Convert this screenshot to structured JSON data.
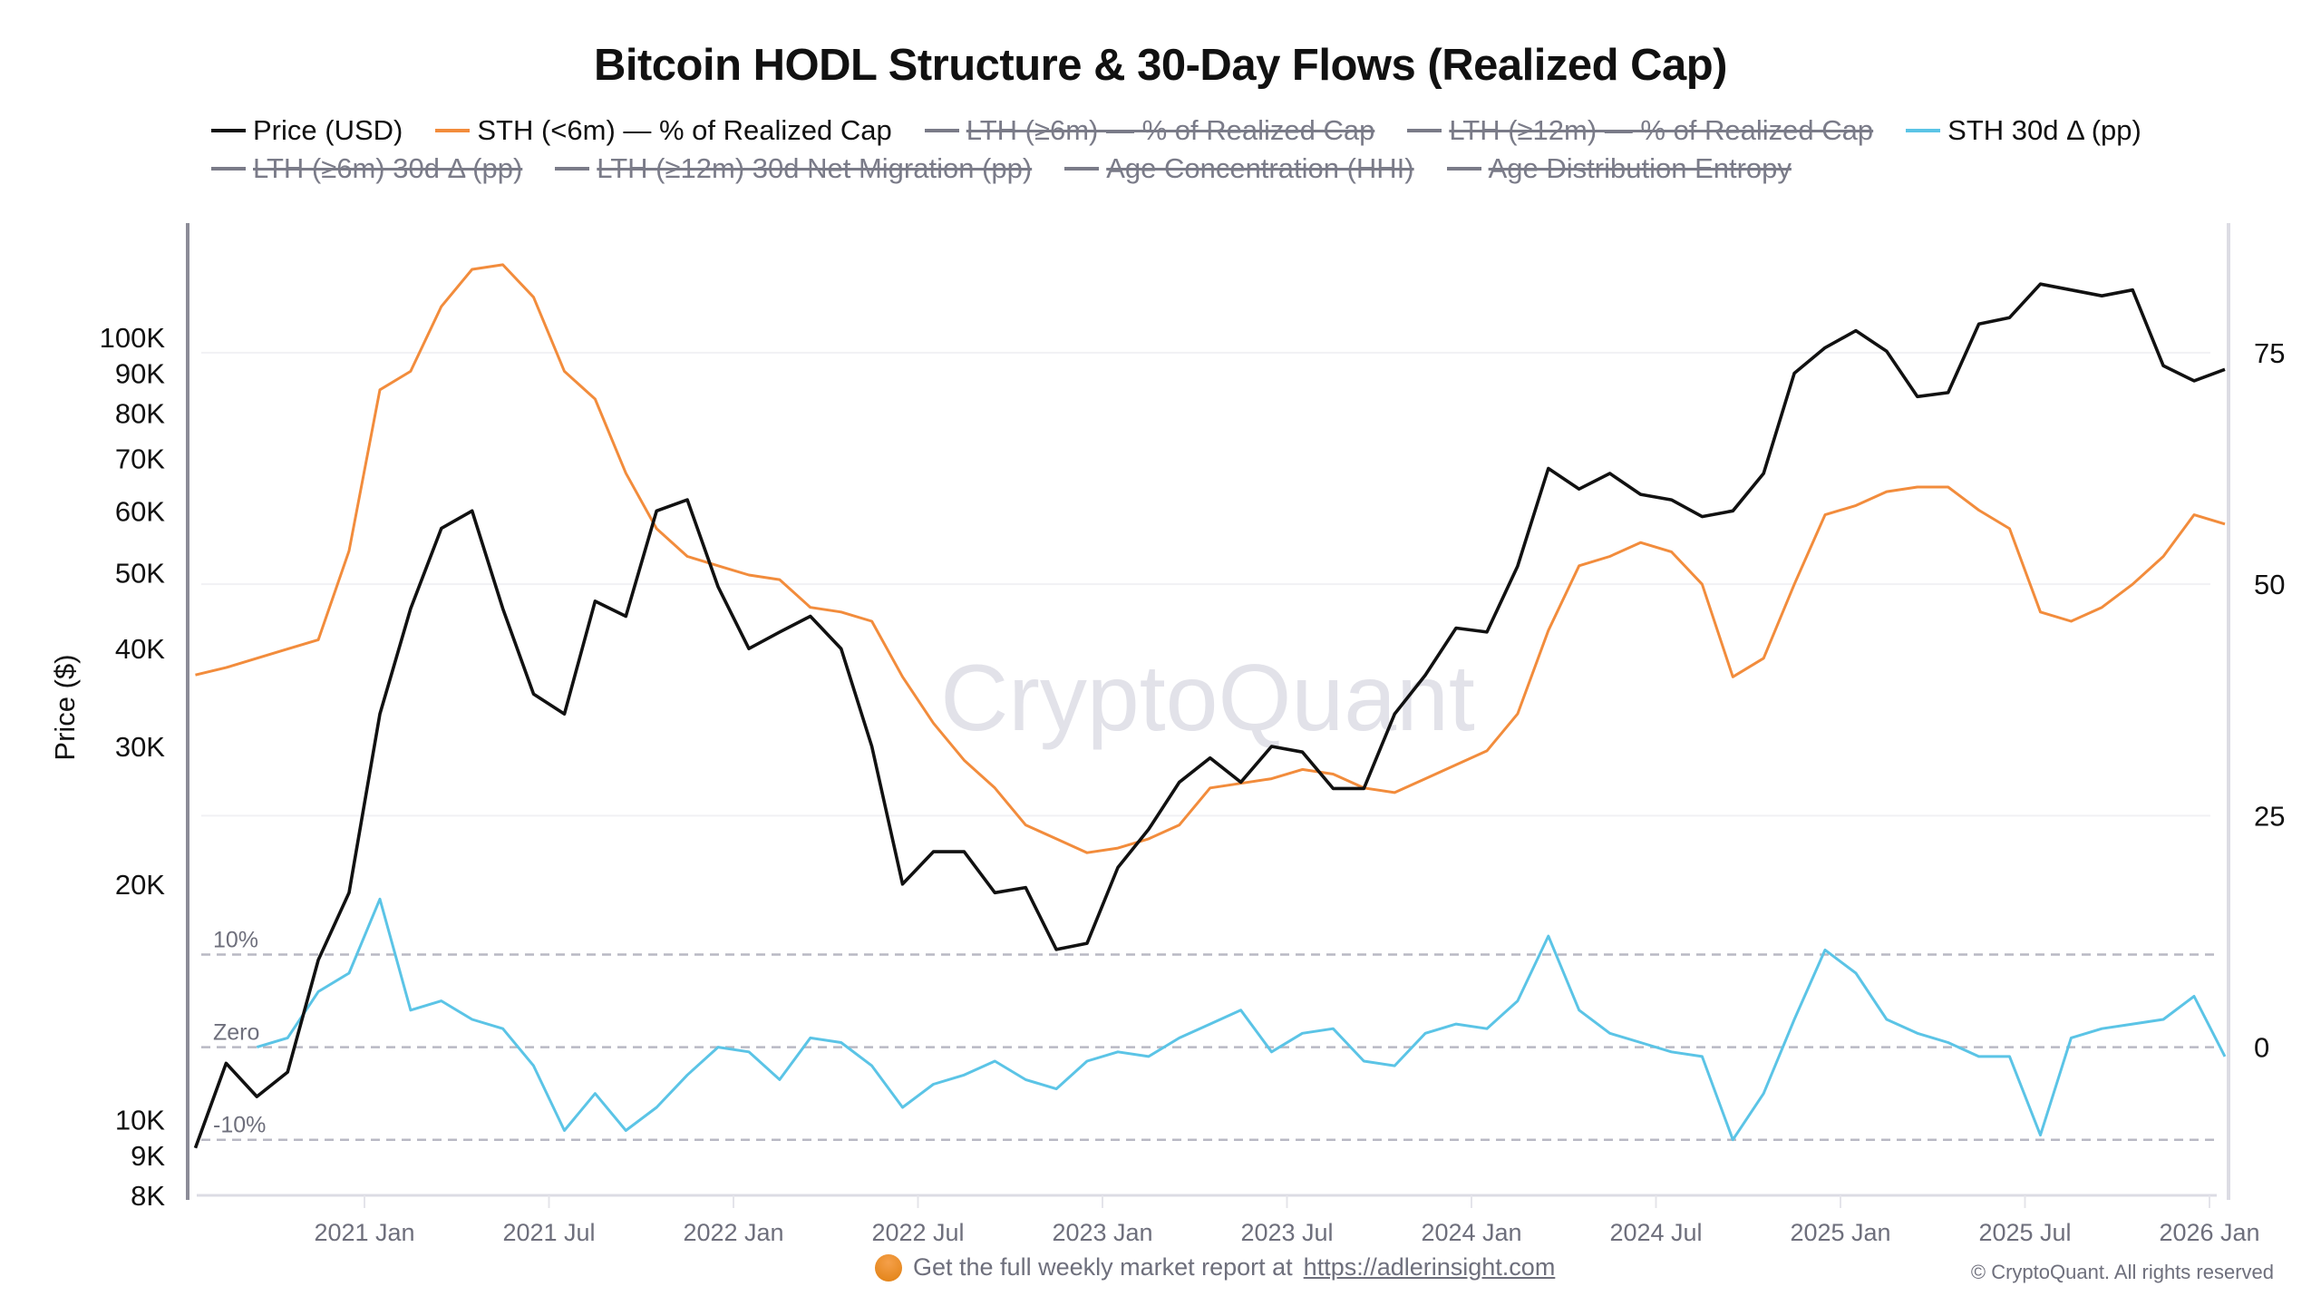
{
  "title": "Bitcoin HODL Structure & 30-Day Flows (Realized Cap)",
  "legend": {
    "row1": [
      {
        "label": "Price (USD)",
        "color": "#111111",
        "hidden": false
      },
      {
        "label": "STH (<6m) — % of Realized Cap",
        "color": "#f28c3c",
        "hidden": false
      },
      {
        "label": "LTH (≥6m) — % of Realized Cap",
        "color": "#7a7b88",
        "hidden": true
      },
      {
        "label": "LTH (≥12m) — % of Realized Cap",
        "color": "#7a7b88",
        "hidden": true
      },
      {
        "label": "STH 30d Δ (pp)",
        "color": "#5bc4e6",
        "hidden": false
      }
    ],
    "row2": [
      {
        "label": "LTH (≥6m) 30d Δ (pp)",
        "color": "#7a7b88",
        "hidden": true
      },
      {
        "label": "LTH (≥12m) 30d Net Migration (pp)",
        "color": "#7a7b88",
        "hidden": true
      },
      {
        "label": "Age Concentration (HHI)",
        "color": "#7a7b88",
        "hidden": true
      },
      {
        "label": "Age Distribution Entropy",
        "color": "#7a7b88",
        "hidden": true
      }
    ]
  },
  "watermark": "CryptoQuant",
  "footer": {
    "note": "Get the full weekly market report at",
    "link": "https://adlerinsight.com",
    "copyright": "© CryptoQuant. All rights reserved"
  },
  "chart_data": {
    "type": "line",
    "title": "Bitcoin HODL Structure & 30-Day Flows (Realized Cap)",
    "xlabel": "",
    "ylabel": "Price ($)",
    "x_ticks": [
      "2021 Jan",
      "2021 Jul",
      "2022 Jan",
      "2022 Jul",
      "2023 Jan",
      "2023 Jul",
      "2024 Jan",
      "2024 Jul",
      "2025 Jan",
      "2025 Jul",
      "2026 Jan"
    ],
    "xlim": [
      "2020-07",
      "2026-01"
    ],
    "y_left": {
      "scale": "log",
      "ylim": [
        8000,
        140000
      ],
      "ticks": [
        {
          "v": 100000,
          "label": "100K"
        },
        {
          "v": 90000,
          "label": "90K"
        },
        {
          "v": 80000,
          "label": "80K"
        },
        {
          "v": 70000,
          "label": "70K"
        },
        {
          "v": 60000,
          "label": "60K"
        },
        {
          "v": 50000,
          "label": "50K"
        },
        {
          "v": 40000,
          "label": "40K"
        },
        {
          "v": 30000,
          "label": "30K"
        },
        {
          "v": 20000,
          "label": "20K"
        },
        {
          "v": 10000,
          "label": "10K"
        },
        {
          "v": 9000,
          "label": "9K"
        },
        {
          "v": 8000,
          "label": "8K"
        }
      ]
    },
    "y_right": {
      "scale": "linear",
      "ylim": [
        -16,
        89
      ],
      "ticks": [
        {
          "v": 75,
          "label": "75"
        },
        {
          "v": 50,
          "label": "50"
        },
        {
          "v": 25,
          "label": "25"
        },
        {
          "v": 0,
          "label": "0"
        }
      ]
    },
    "grid": "horizontal at right-axis ticks",
    "legend_placement": "top",
    "reference_lines": [
      {
        "value": 10,
        "label": "10%",
        "axis": "right",
        "style": "dashed"
      },
      {
        "value": 0,
        "label": "Zero",
        "axis": "right",
        "style": "dashed"
      },
      {
        "value": -10,
        "label": "-10%",
        "axis": "right",
        "style": "dashed"
      }
    ],
    "series": [
      {
        "name": "Price (USD)",
        "axis": "left",
        "color": "#111111",
        "x": [
          "2020-07",
          "2020-08",
          "2020-09",
          "2020-10",
          "2020-11",
          "2020-12",
          "2021-01",
          "2021-02",
          "2021-03",
          "2021-04",
          "2021-05",
          "2021-06",
          "2021-07",
          "2021-08",
          "2021-09",
          "2021-10",
          "2021-11",
          "2021-12",
          "2022-01",
          "2022-02",
          "2022-03",
          "2022-04",
          "2022-05",
          "2022-06",
          "2022-07",
          "2022-08",
          "2022-09",
          "2022-10",
          "2022-11",
          "2022-12",
          "2023-01",
          "2023-02",
          "2023-03",
          "2023-04",
          "2023-05",
          "2023-06",
          "2023-07",
          "2023-08",
          "2023-09",
          "2023-10",
          "2023-11",
          "2023-12",
          "2024-01",
          "2024-02",
          "2024-03",
          "2024-04",
          "2024-05",
          "2024-06",
          "2024-07",
          "2024-08",
          "2024-09",
          "2024-10",
          "2024-11",
          "2024-12",
          "2025-01",
          "2025-02",
          "2025-03",
          "2025-04",
          "2025-05",
          "2025-06",
          "2025-07",
          "2025-08",
          "2025-09",
          "2025-10",
          "2025-11",
          "2025-12",
          "2026-01"
        ],
        "values": [
          9200,
          11800,
          10700,
          11500,
          16000,
          19500,
          33000,
          45000,
          57000,
          60000,
          45000,
          35000,
          33000,
          46000,
          44000,
          60000,
          62000,
          48000,
          40000,
          42000,
          44000,
          40000,
          30000,
          20000,
          22000,
          22000,
          19500,
          19800,
          16500,
          16800,
          21000,
          23500,
          27000,
          29000,
          27000,
          30000,
          29500,
          26500,
          26500,
          33000,
          37000,
          42500,
          42000,
          51000,
          68000,
          64000,
          67000,
          63000,
          62000,
          59000,
          60000,
          67000,
          90000,
          97000,
          102000,
          96000,
          84000,
          85000,
          104000,
          106000,
          117000,
          115000,
          113000,
          115000,
          92000,
          88000,
          91000
        ]
      },
      {
        "name": "STH (<6m) — % of Realized Cap",
        "axis": "right",
        "color": "#f28c3c",
        "x": [
          "2020-07",
          "2020-08",
          "2020-09",
          "2020-10",
          "2020-11",
          "2020-12",
          "2021-01",
          "2021-02",
          "2021-03",
          "2021-04",
          "2021-05",
          "2021-06",
          "2021-07",
          "2021-08",
          "2021-09",
          "2021-10",
          "2021-11",
          "2021-12",
          "2022-01",
          "2022-02",
          "2022-03",
          "2022-04",
          "2022-05",
          "2022-06",
          "2022-07",
          "2022-08",
          "2022-09",
          "2022-10",
          "2022-11",
          "2022-12",
          "2023-01",
          "2023-02",
          "2023-03",
          "2023-04",
          "2023-05",
          "2023-06",
          "2023-07",
          "2023-08",
          "2023-09",
          "2023-10",
          "2023-11",
          "2023-12",
          "2024-01",
          "2024-02",
          "2024-03",
          "2024-04",
          "2024-05",
          "2024-06",
          "2024-07",
          "2024-08",
          "2024-09",
          "2024-10",
          "2024-11",
          "2024-12",
          "2025-01",
          "2025-02",
          "2025-03",
          "2025-04",
          "2025-05",
          "2025-06",
          "2025-07",
          "2025-08",
          "2025-09",
          "2025-10",
          "2025-11",
          "2025-12",
          "2026-01"
        ],
        "values": [
          40.2,
          41,
          42,
          43,
          44,
          53.6,
          71,
          73,
          80,
          84,
          84.5,
          81,
          73,
          70,
          62,
          56,
          53,
          52,
          51,
          50.5,
          47.5,
          47,
          46,
          40,
          35,
          31,
          28,
          24,
          22.5,
          21,
          21.5,
          22.5,
          24,
          28,
          28.5,
          29,
          30,
          29.5,
          28,
          27.5,
          29,
          30.5,
          32,
          36,
          45,
          52,
          53,
          54.5,
          53.5,
          50,
          40,
          42,
          50,
          57.5,
          58.5,
          60,
          60.5,
          60.5,
          58,
          56,
          47,
          46,
          47.5,
          50,
          53,
          57.5,
          56.5
        ]
      },
      {
        "name": "STH 30d Δ (pp)",
        "axis": "right",
        "color": "#5bc4e6",
        "x": [
          "2020-09",
          "2020-10",
          "2020-11",
          "2020-12",
          "2021-01",
          "2021-02",
          "2021-03",
          "2021-04",
          "2021-05",
          "2021-06",
          "2021-07",
          "2021-08",
          "2021-09",
          "2021-10",
          "2021-11",
          "2021-12",
          "2022-01",
          "2022-02",
          "2022-03",
          "2022-04",
          "2022-05",
          "2022-06",
          "2022-07",
          "2022-08",
          "2022-09",
          "2022-10",
          "2022-11",
          "2022-12",
          "2023-01",
          "2023-02",
          "2023-03",
          "2023-04",
          "2023-05",
          "2023-06",
          "2023-07",
          "2023-08",
          "2023-09",
          "2023-10",
          "2023-11",
          "2023-12",
          "2024-01",
          "2024-02",
          "2024-03",
          "2024-04",
          "2024-05",
          "2024-06",
          "2024-07",
          "2024-08",
          "2024-09",
          "2024-10",
          "2024-11",
          "2024-12",
          "2025-01",
          "2025-02",
          "2025-03",
          "2025-04",
          "2025-05",
          "2025-06",
          "2025-07",
          "2025-08",
          "2025-09",
          "2025-10",
          "2025-11",
          "2025-12",
          "2026-01"
        ],
        "values": [
          0,
          1,
          6,
          8,
          16,
          4,
          5,
          3,
          2,
          -2,
          -9,
          -5,
          -9,
          -6.5,
          -3,
          0,
          -0.5,
          -3.5,
          1,
          0.5,
          -2,
          -6.5,
          -4,
          -3,
          -1.5,
          -3.5,
          -4.5,
          -1.5,
          -0.5,
          -1,
          1,
          2.5,
          4,
          -0.5,
          1.5,
          2,
          -1.5,
          -2,
          1.5,
          2.5,
          2,
          5,
          12,
          4,
          1.5,
          0.5,
          -0.5,
          -1,
          -10,
          -5,
          3,
          10.5,
          8,
          3,
          1.5,
          0.5,
          -1,
          -1,
          -9.5,
          1,
          2,
          2.5,
          3,
          5.5,
          -1
        ]
      }
    ]
  }
}
